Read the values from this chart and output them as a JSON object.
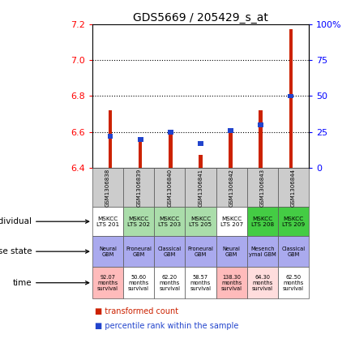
{
  "title": "GDS5669 / 205429_s_at",
  "samples": [
    "GSM1306838",
    "GSM1306839",
    "GSM1306840",
    "GSM1306841",
    "GSM1306842",
    "GSM1306843",
    "GSM1306844"
  ],
  "red_values": [
    6.72,
    6.555,
    6.595,
    6.475,
    6.605,
    6.72,
    7.17
  ],
  "blue_percentile": [
    22,
    20,
    25,
    17,
    26,
    30,
    50
  ],
  "ylim_left": [
    6.4,
    7.2
  ],
  "ylim_right": [
    0,
    100
  ],
  "yticks_left": [
    6.4,
    6.6,
    6.8,
    7.0,
    7.2
  ],
  "yticks_right": [
    0,
    25,
    50,
    75,
    100
  ],
  "individual_labels": [
    "MSKCC\nLTS 201",
    "MSKCC\nLTS 202",
    "MSKCC\nLTS 203",
    "MSKCC\nLTS 205",
    "MSKCC\nLTS 207",
    "MSKCC\nLTS 208",
    "MSKCC\nLTS 209"
  ],
  "individual_colors": [
    "#ffffff",
    "#aaddaa",
    "#aaddaa",
    "#aaddaa",
    "#ffffff",
    "#44cc44",
    "#44cc44"
  ],
  "disease_labels": [
    "Neural\nGBM",
    "Proneural\nGBM",
    "Classical\nGBM",
    "Proneural\nGBM",
    "Neural\nGBM",
    "Mesench\nymal GBM",
    "Classical\nGBM"
  ],
  "disease_colors": [
    "#aaaaee",
    "#aaaaee",
    "#aaaaee",
    "#aaaaee",
    "#aaaaee",
    "#aaaaee",
    "#aaaaee"
  ],
  "time_labels": [
    "92.07\nmonths\nsurvival",
    "50.60\nmonths\nsurvival",
    "62.20\nmonths\nsurvival",
    "58.57\nmonths\nsurvival",
    "138.30\nmonths\nsurvival",
    "64.30\nmonths\nsurvival",
    "62.50\nmonths\nsurvival"
  ],
  "time_colors": [
    "#ffbbbb",
    "#ffffff",
    "#ffffff",
    "#ffffff",
    "#ffbbbb",
    "#ffdddd",
    "#ffffff"
  ],
  "bar_color_red": "#cc2200",
  "bar_color_blue": "#2244cc",
  "legend_red": "transformed count",
  "legend_blue": "percentile rank within the sample"
}
